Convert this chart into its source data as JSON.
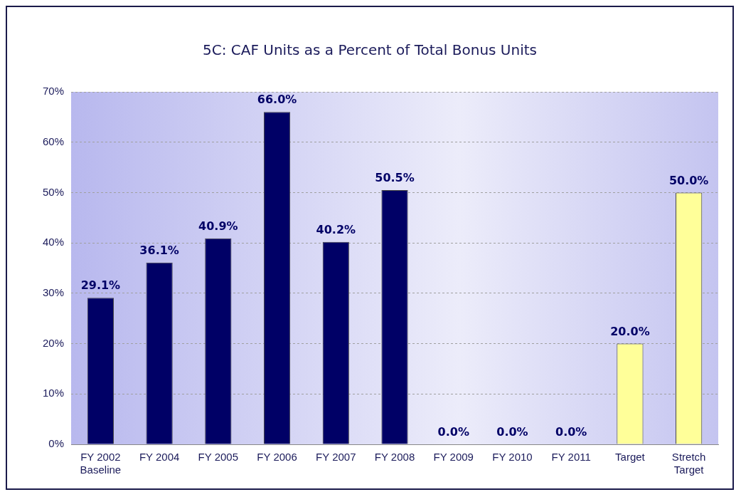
{
  "chart_data": {
    "type": "bar",
    "title": "5C: CAF Units as a Percent of Total Bonus Units",
    "categories": [
      "FY 2002\nBaseline",
      "FY 2004",
      "FY 2005",
      "FY 2006",
      "FY 2007",
      "FY 2008",
      "FY 2009",
      "FY 2010",
      "FY 2011",
      "Target",
      "Stretch\nTarget"
    ],
    "values": [
      29.1,
      36.1,
      40.9,
      66.0,
      40.2,
      50.5,
      0,
      0,
      0,
      20.0,
      50.0
    ],
    "colors": [
      "#000066",
      "#000066",
      "#000066",
      "#000066",
      "#000066",
      "#000066",
      "#000066",
      "#000066",
      "#000066",
      "#ffff99",
      "#ffff99"
    ],
    "value_labels": [
      "29.1%",
      "36.1%",
      "40.9%",
      "66.0%",
      "40.2%",
      "50.5%",
      "0.0%",
      "0.0%",
      "0.0%",
      "20.0%",
      "50.0%"
    ],
    "ylim": [
      0,
      70
    ],
    "yticks": [
      {
        "value": 0,
        "label": "0%"
      },
      {
        "value": 10,
        "label": "10%"
      },
      {
        "value": 20,
        "label": "20%"
      },
      {
        "value": 30,
        "label": "30%"
      },
      {
        "value": 40,
        "label": "40%"
      },
      {
        "value": 50,
        "label": "50%"
      },
      {
        "value": 60,
        "label": "60%"
      },
      {
        "value": 70,
        "label": "70%"
      }
    ],
    "grid": "y",
    "legend": false
  }
}
